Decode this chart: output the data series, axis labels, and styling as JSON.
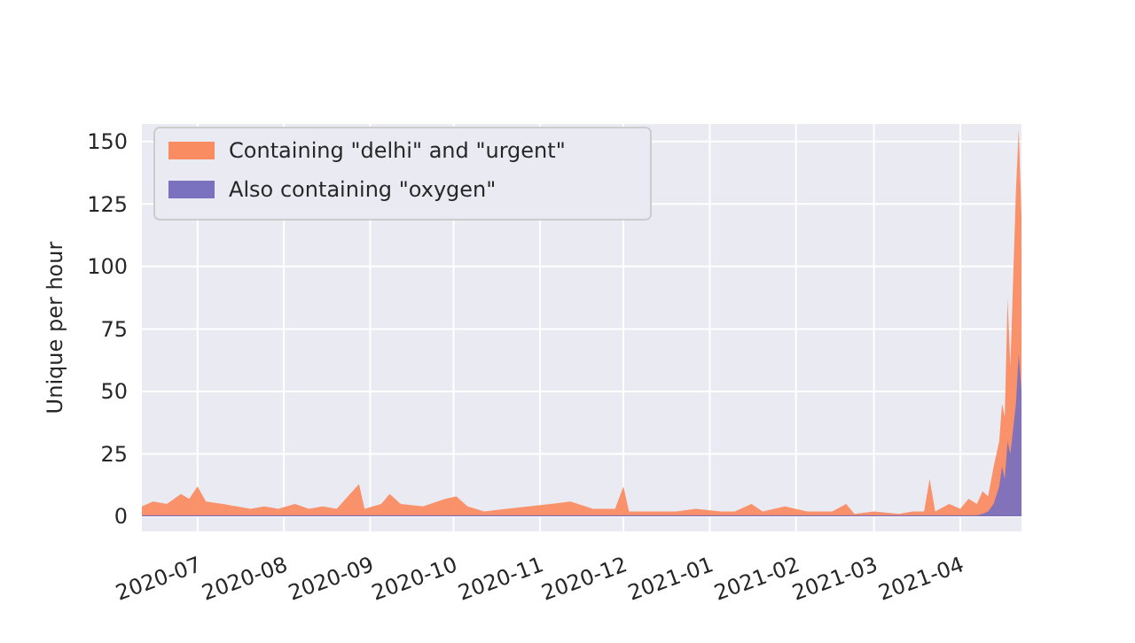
{
  "chart_data": {
    "type": "area",
    "ylabel": "Unique per hour",
    "xlim": [
      "2020-06-11",
      "2021-04-23"
    ],
    "ylim": [
      -6,
      157
    ],
    "xticks": [
      "2020-07",
      "2020-08",
      "2020-09",
      "2020-10",
      "2020-11",
      "2020-12",
      "2021-01",
      "2021-02",
      "2021-03",
      "2021-04"
    ],
    "yticks": [
      0,
      25,
      50,
      75,
      100,
      125,
      150
    ],
    "grid": true,
    "legend": "top left",
    "series": [
      {
        "name": "Containing \"delhi\" and \"urgent\"",
        "color": "#fa8c62",
        "x": [
          "2020-06-11",
          "2020-06-15",
          "2020-06-20",
          "2020-06-25",
          "2020-06-28",
          "2020-07-01",
          "2020-07-04",
          "2020-07-10",
          "2020-07-15",
          "2020-07-20",
          "2020-07-25",
          "2020-07-30",
          "2020-08-05",
          "2020-08-10",
          "2020-08-15",
          "2020-08-20",
          "2020-08-28",
          "2020-08-30",
          "2020-09-05",
          "2020-09-08",
          "2020-09-12",
          "2020-09-20",
          "2020-09-28",
          "2020-10-02",
          "2020-10-06",
          "2020-10-12",
          "2020-10-20",
          "2020-10-28",
          "2020-11-05",
          "2020-11-12",
          "2020-11-20",
          "2020-11-28",
          "2020-12-01",
          "2020-12-03",
          "2020-12-10",
          "2020-12-20",
          "2020-12-27",
          "2021-01-05",
          "2021-01-10",
          "2021-01-16",
          "2021-01-20",
          "2021-01-28",
          "2021-02-05",
          "2021-02-14",
          "2021-02-19",
          "2021-02-22",
          "2021-03-01",
          "2021-03-10",
          "2021-03-15",
          "2021-03-19",
          "2021-03-21",
          "2021-03-23",
          "2021-03-28",
          "2021-04-01",
          "2021-04-04",
          "2021-04-07",
          "2021-04-09",
          "2021-04-11",
          "2021-04-13",
          "2021-04-15",
          "2021-04-16",
          "2021-04-17",
          "2021-04-18",
          "2021-04-19",
          "2021-04-20",
          "2021-04-21",
          "2021-04-22",
          "2021-04-23"
        ],
        "values": [
          4,
          6,
          5,
          9,
          7,
          12,
          6,
          5,
          4,
          3,
          4,
          3,
          5,
          3,
          4,
          3,
          13,
          3,
          5,
          9,
          5,
          4,
          7,
          8,
          4,
          2,
          3,
          4,
          5,
          6,
          3,
          3,
          12,
          2,
          2,
          2,
          3,
          2,
          2,
          5,
          2,
          4,
          2,
          2,
          5,
          1,
          2,
          1,
          2,
          2,
          15,
          2,
          5,
          3,
          7,
          5,
          10,
          8,
          20,
          30,
          45,
          40,
          87,
          60,
          95,
          130,
          155,
          120
        ]
      },
      {
        "name": "Also containing \"oxygen\"",
        "color": "#7a71bf",
        "x": [
          "2020-06-11",
          "2021-04-07",
          "2021-04-09",
          "2021-04-11",
          "2021-04-13",
          "2021-04-15",
          "2021-04-16",
          "2021-04-17",
          "2021-04-18",
          "2021-04-19",
          "2021-04-20",
          "2021-04-21",
          "2021-04-22",
          "2021-04-23"
        ],
        "values": [
          0.5,
          0.5,
          1,
          2,
          5,
          12,
          20,
          15,
          30,
          25,
          35,
          45,
          65,
          50
        ]
      }
    ]
  }
}
